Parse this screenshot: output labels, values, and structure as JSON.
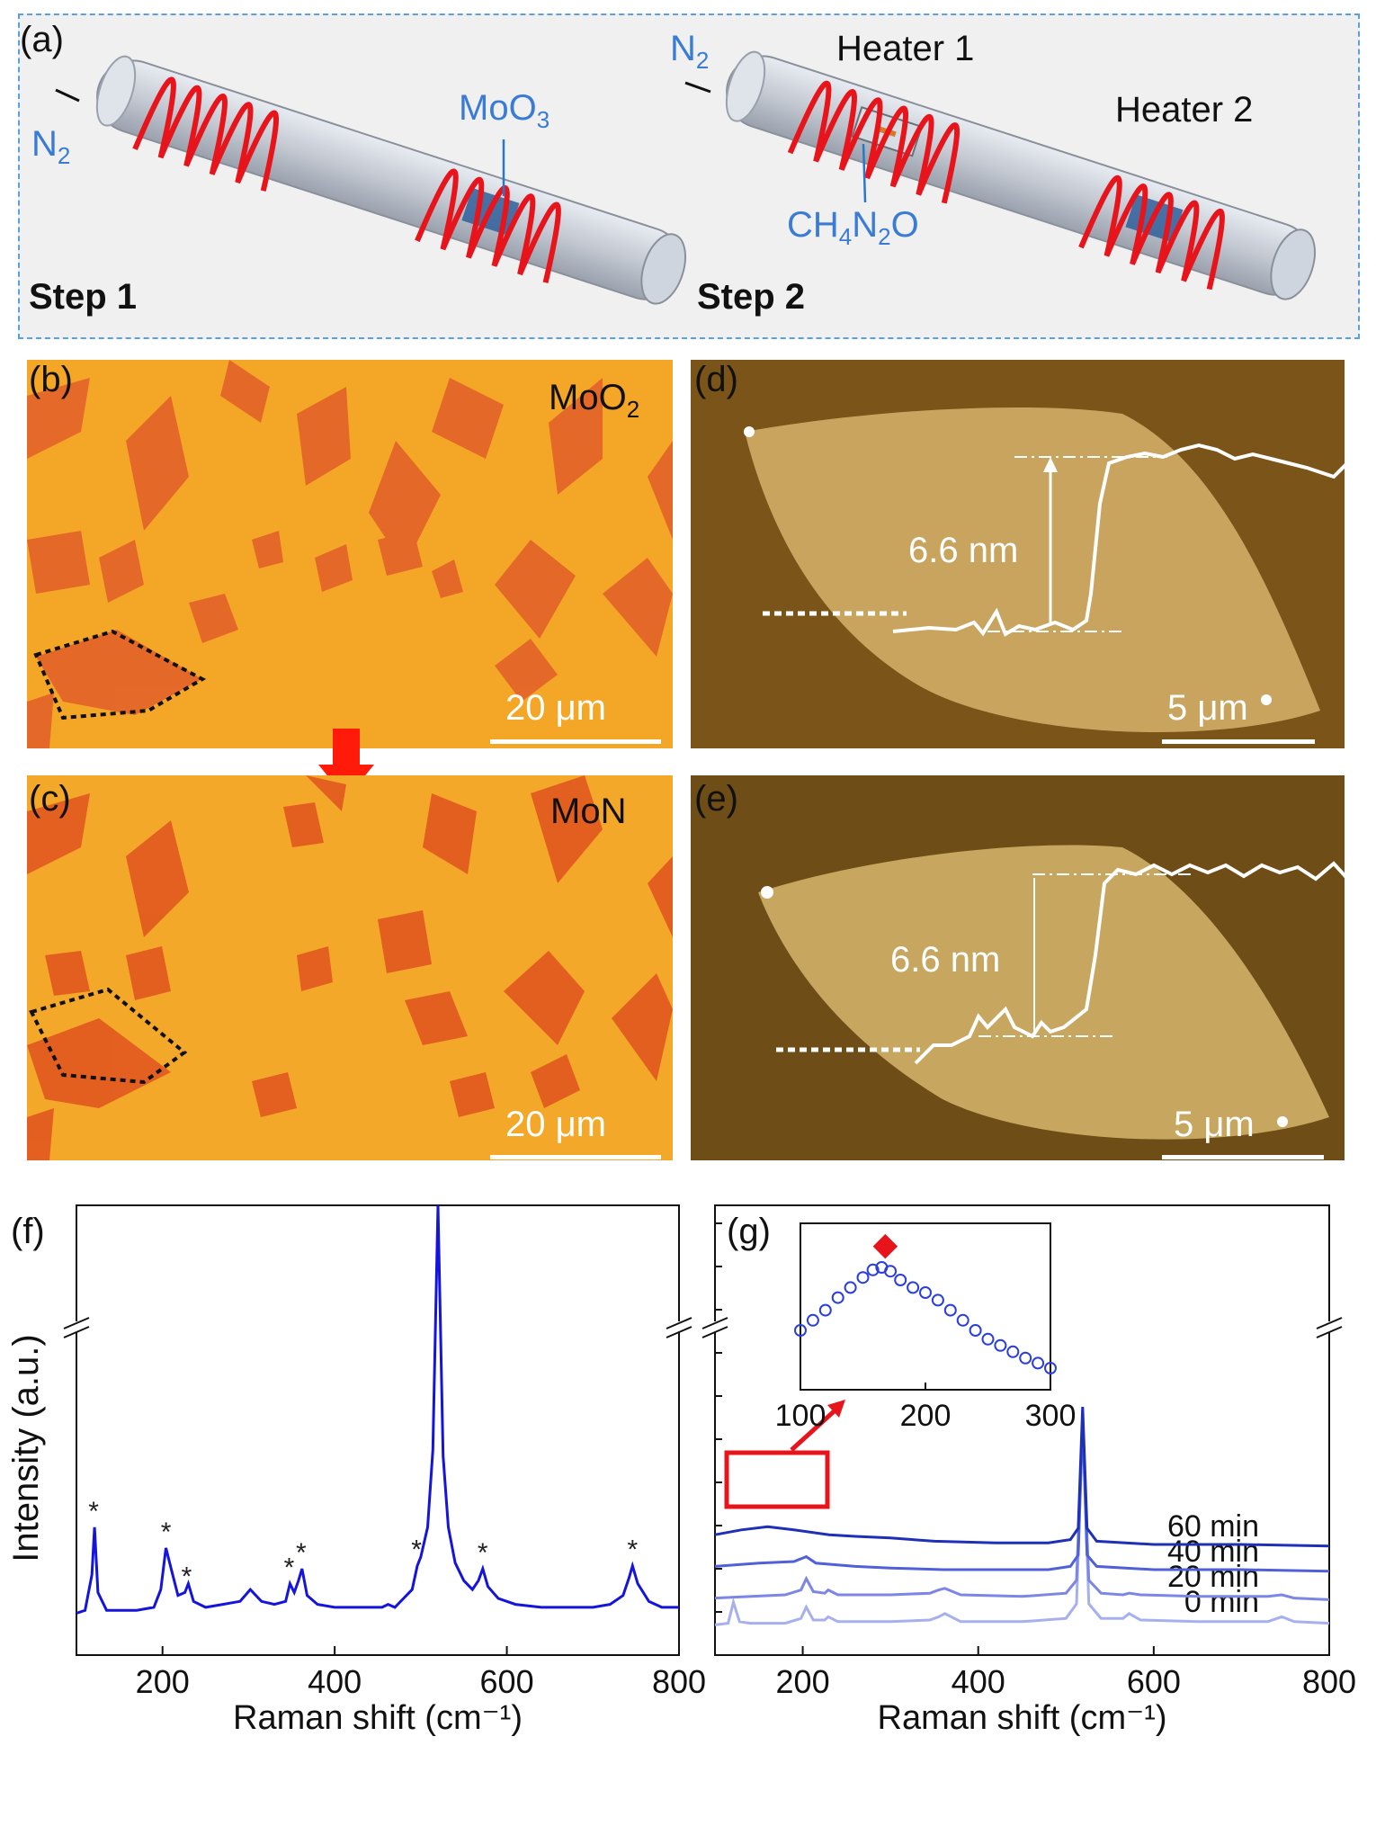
{
  "panel_a": {
    "label": "(a)",
    "step1": {
      "label": "Step 1",
      "gas": "N",
      "gas_sub": "2",
      "source": "MoO",
      "source_sub": "3"
    },
    "step2": {
      "label": "Step 2",
      "gas": "N",
      "gas_sub": "2",
      "heater1": "Heater 1",
      "heater2": "Heater 2",
      "reagent": [
        "CH",
        "4",
        "N",
        "2",
        "O"
      ]
    }
  },
  "panel_b": {
    "label": "(b)",
    "material": "MoO",
    "material_sub": "2",
    "scale": "20 μm"
  },
  "panel_c": {
    "label": "(c)",
    "material": "MoN",
    "scale": "20 μm"
  },
  "panel_d": {
    "label": "(d)",
    "height": "6.6 nm",
    "scale": "5 μm"
  },
  "panel_e": {
    "label": "(e)",
    "height": "6.6 nm",
    "scale": "5 μm"
  },
  "colors": {
    "coil": "#e8141c",
    "arrow": "#ff1a0a",
    "optical_bg": "#f5a623",
    "flake": "#e5652a",
    "afm_bg": "#7a5418",
    "afm_flake": "#c9a45e",
    "raman": "#1414dc"
  },
  "chart_data": [
    {
      "panel": "(f)",
      "type": "line",
      "xlabel": "Raman shift (cm⁻¹)",
      "ylabel": "Intensity (a.u.)",
      "xlim": [
        100,
        800
      ],
      "xticks": [
        200,
        400,
        600,
        800
      ],
      "axis_break": true,
      "peaks_marked": [
        120,
        204,
        228,
        347,
        361,
        495,
        572,
        746
      ],
      "peak_marker": "*",
      "series": [
        {
          "x": [
            100,
            110,
            118,
            121,
            125,
            135,
            150,
            170,
            190,
            198,
            204,
            210,
            218,
            226,
            230,
            236,
            250,
            270,
            290,
            302,
            315,
            330,
            343,
            348,
            353,
            358,
            362,
            368,
            380,
            400,
            430,
            455,
            462,
            470,
            480,
            490,
            496,
            500,
            508,
            514,
            520,
            526,
            532,
            540,
            550,
            560,
            567,
            572,
            578,
            590,
            610,
            640,
            670,
            700,
            720,
            735,
            742,
            746,
            752,
            765,
            780,
            800
          ],
          "y": [
            0.05,
            0.06,
            0.18,
            0.34,
            0.12,
            0.06,
            0.06,
            0.06,
            0.07,
            0.13,
            0.27,
            0.2,
            0.11,
            0.12,
            0.15,
            0.09,
            0.07,
            0.08,
            0.09,
            0.13,
            0.09,
            0.08,
            0.09,
            0.15,
            0.12,
            0.16,
            0.2,
            0.11,
            0.08,
            0.07,
            0.07,
            0.07,
            0.08,
            0.07,
            0.1,
            0.13,
            0.21,
            0.24,
            0.34,
            0.6,
            1.45,
            0.58,
            0.34,
            0.22,
            0.16,
            0.13,
            0.16,
            0.2,
            0.14,
            0.1,
            0.08,
            0.07,
            0.07,
            0.07,
            0.08,
            0.11,
            0.17,
            0.21,
            0.15,
            0.09,
            0.07,
            0.07
          ]
        }
      ]
    },
    {
      "panel": "(g)",
      "type": "line",
      "xlabel": "Raman shift (cm⁻¹)",
      "xlim": [
        100,
        800
      ],
      "xticks": [
        200,
        400,
        600,
        800
      ],
      "axis_break": true,
      "series": [
        {
          "name": "0 min",
          "offset": 0.0,
          "x": [
            100,
            115,
            121,
            128,
            140,
            180,
            198,
            204,
            212,
            225,
            229,
            240,
            300,
            345,
            355,
            362,
            380,
            450,
            500,
            512,
            519,
            526,
            540,
            565,
            572,
            585,
            650,
            730,
            746,
            760,
            800
          ],
          "y": [
            0.02,
            0.03,
            0.16,
            0.04,
            0.03,
            0.03,
            0.06,
            0.13,
            0.05,
            0.05,
            0.07,
            0.04,
            0.04,
            0.05,
            0.07,
            0.09,
            0.04,
            0.04,
            0.06,
            0.15,
            1.25,
            0.15,
            0.06,
            0.06,
            0.09,
            0.05,
            0.04,
            0.04,
            0.07,
            0.04,
            0.03
          ]
        },
        {
          "name": "20 min",
          "offset": 0.14,
          "x": [
            100,
            180,
            198,
            204,
            212,
            225,
            229,
            240,
            300,
            345,
            355,
            362,
            380,
            450,
            500,
            512,
            519,
            526,
            540,
            565,
            572,
            585,
            650,
            730,
            746,
            760,
            800
          ],
          "y": [
            0.03,
            0.05,
            0.08,
            0.15,
            0.07,
            0.06,
            0.08,
            0.05,
            0.05,
            0.06,
            0.08,
            0.09,
            0.05,
            0.04,
            0.06,
            0.14,
            1.1,
            0.14,
            0.06,
            0.05,
            0.06,
            0.05,
            0.04,
            0.04,
            0.05,
            0.03,
            0.02
          ]
        },
        {
          "name": "40 min",
          "offset": 0.28,
          "x": [
            100,
            150,
            190,
            204,
            215,
            260,
            300,
            360,
            420,
            480,
            505,
            514,
            519,
            524,
            535,
            600,
            700,
            800
          ],
          "y": [
            0.07,
            0.09,
            0.1,
            0.13,
            0.09,
            0.07,
            0.06,
            0.05,
            0.05,
            0.05,
            0.07,
            0.14,
            1.0,
            0.14,
            0.07,
            0.05,
            0.05,
            0.04
          ]
        },
        {
          "name": "60 min",
          "offset": 0.42,
          "x": [
            100,
            130,
            160,
            190,
            230,
            260,
            300,
            350,
            420,
            480,
            505,
            514,
            519,
            524,
            535,
            600,
            700,
            800
          ],
          "y": [
            0.11,
            0.14,
            0.16,
            0.14,
            0.11,
            0.1,
            0.09,
            0.07,
            0.06,
            0.06,
            0.08,
            0.15,
            0.9,
            0.15,
            0.07,
            0.05,
            0.05,
            0.04
          ]
        }
      ],
      "inset": {
        "xlim": [
          100,
          300
        ],
        "xticks": [
          100,
          200,
          300
        ],
        "peak_marker": "◆",
        "peak_x": 165,
        "x": [
          100,
          110,
          120,
          130,
          140,
          150,
          158,
          165,
          172,
          180,
          190,
          200,
          210,
          220,
          230,
          240,
          250,
          260,
          270,
          280,
          290,
          300
        ],
        "y": [
          0.4,
          0.48,
          0.56,
          0.66,
          0.74,
          0.82,
          0.88,
          0.9,
          0.87,
          0.8,
          0.74,
          0.7,
          0.64,
          0.56,
          0.48,
          0.4,
          0.33,
          0.28,
          0.23,
          0.18,
          0.14,
          0.1
        ]
      }
    }
  ],
  "labels": {
    "f": "(f)",
    "g": "(g)"
  }
}
